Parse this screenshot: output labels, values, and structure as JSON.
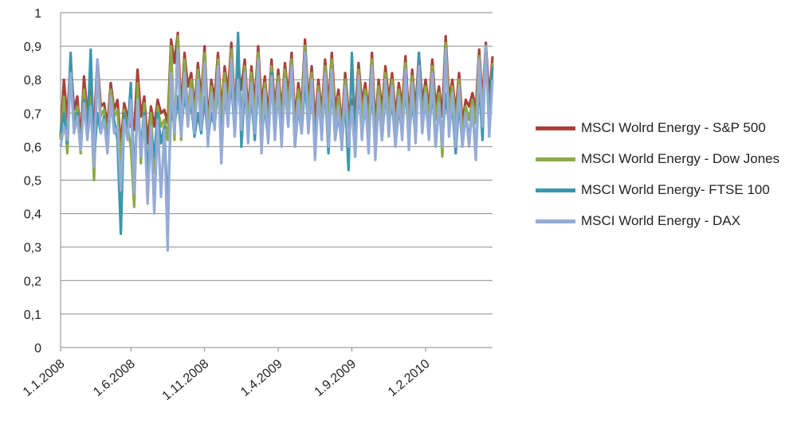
{
  "colors": {
    "sp500": "#a8403c",
    "dowjones": "#8caa45",
    "ftse100": "#3a97ad",
    "dax": "#95abd6",
    "grid": "#8a8a8a"
  },
  "chart_data": {
    "type": "line",
    "title": "",
    "xlabel": "",
    "ylabel": "",
    "ylim": [
      0,
      1
    ],
    "yticks": [
      "0",
      "0,1",
      "0,2",
      "0,3",
      "0,4",
      "0,5",
      "0,6",
      "0,7",
      "0,8",
      "0,9",
      "1"
    ],
    "xticks": [
      "1.1.2008",
      "1.6.2008",
      "1.11.2008",
      "1.4.2009",
      "1.9.2009",
      "1.2.2010"
    ],
    "x_range": [
      "1.1.2008",
      "30.6.2010"
    ],
    "x_note": "weekly observations, 130 points from 1.1.2008 (approx. 7 days apart)",
    "grid": true,
    "legend_position": "right",
    "series": [
      {
        "name": "MSCI Wolrd Energy - S&P 500",
        "color": "#a8403c",
        "values": [
          0.63,
          0.8,
          0.68,
          0.86,
          0.71,
          0.75,
          0.62,
          0.81,
          0.7,
          0.77,
          0.65,
          0.86,
          0.72,
          0.73,
          0.66,
          0.79,
          0.71,
          0.74,
          0.6,
          0.73,
          0.69,
          0.66,
          0.65,
          0.83,
          0.69,
          0.75,
          0.61,
          0.72,
          0.66,
          0.74,
          0.7,
          0.71,
          0.67,
          0.92,
          0.85,
          0.94,
          0.7,
          0.88,
          0.78,
          0.82,
          0.71,
          0.85,
          0.74,
          0.9,
          0.67,
          0.8,
          0.74,
          0.88,
          0.7,
          0.84,
          0.76,
          0.91,
          0.71,
          0.85,
          0.77,
          0.86,
          0.7,
          0.84,
          0.73,
          0.9,
          0.72,
          0.81,
          0.69,
          0.86,
          0.71,
          0.83,
          0.7,
          0.85,
          0.75,
          0.88,
          0.68,
          0.79,
          0.72,
          0.92,
          0.73,
          0.84,
          0.67,
          0.8,
          0.7,
          0.86,
          0.72,
          0.88,
          0.71,
          0.77,
          0.66,
          0.82,
          0.7,
          0.74,
          0.69,
          0.85,
          0.73,
          0.79,
          0.7,
          0.88,
          0.66,
          0.8,
          0.71,
          0.84,
          0.74,
          0.82,
          0.69,
          0.79,
          0.72,
          0.87,
          0.68,
          0.83,
          0.7,
          0.88,
          0.73,
          0.8,
          0.71,
          0.86,
          0.72,
          0.78,
          0.69,
          0.93,
          0.74,
          0.8,
          0.7,
          0.82,
          0.67,
          0.74,
          0.72,
          0.76,
          0.71,
          0.89,
          0.73,
          0.91,
          0.74,
          0.87
        ]
      },
      {
        "name": "MSCI World Energy - Dow Jones",
        "color": "#8caa45",
        "values": [
          0.62,
          0.75,
          0.58,
          0.84,
          0.67,
          0.72,
          0.58,
          0.77,
          0.66,
          0.75,
          0.5,
          0.84,
          0.69,
          0.71,
          0.62,
          0.77,
          0.69,
          0.71,
          0.55,
          0.71,
          0.66,
          0.6,
          0.42,
          0.79,
          0.55,
          0.73,
          0.49,
          0.7,
          0.52,
          0.72,
          0.66,
          0.68,
          0.62,
          0.9,
          0.62,
          0.93,
          0.62,
          0.86,
          0.7,
          0.8,
          0.68,
          0.83,
          0.7,
          0.88,
          0.64,
          0.78,
          0.69,
          0.86,
          0.66,
          0.82,
          0.7,
          0.89,
          0.67,
          0.83,
          0.68,
          0.84,
          0.66,
          0.82,
          0.68,
          0.88,
          0.66,
          0.79,
          0.64,
          0.84,
          0.67,
          0.81,
          0.66,
          0.83,
          0.71,
          0.86,
          0.64,
          0.77,
          0.68,
          0.9,
          0.69,
          0.82,
          0.6,
          0.78,
          0.66,
          0.84,
          0.68,
          0.86,
          0.66,
          0.75,
          0.62,
          0.8,
          0.66,
          0.72,
          0.57,
          0.83,
          0.69,
          0.77,
          0.66,
          0.86,
          0.61,
          0.78,
          0.67,
          0.82,
          0.7,
          0.8,
          0.65,
          0.77,
          0.68,
          0.85,
          0.64,
          0.81,
          0.66,
          0.86,
          0.69,
          0.78,
          0.67,
          0.84,
          0.68,
          0.76,
          0.57,
          0.91,
          0.7,
          0.78,
          0.66,
          0.8,
          0.63,
          0.72,
          0.68,
          0.74,
          0.67,
          0.87,
          0.69,
          0.89,
          0.68,
          0.85
        ]
      },
      {
        "name": "MSCI World Energy- FTSE 100",
        "color": "#3a97ad",
        "values": [
          0.64,
          0.7,
          0.61,
          0.88,
          0.65,
          0.7,
          0.6,
          0.74,
          0.63,
          0.89,
          0.56,
          0.7,
          0.64,
          0.69,
          0.6,
          0.73,
          0.68,
          0.62,
          0.34,
          0.7,
          0.64,
          0.79,
          0.5,
          0.72,
          0.6,
          0.7,
          0.52,
          0.65,
          0.57,
          0.7,
          0.61,
          0.66,
          0.4,
          0.72,
          0.66,
          0.75,
          0.64,
          0.76,
          0.68,
          0.73,
          0.63,
          0.7,
          0.64,
          0.75,
          0.62,
          0.7,
          0.66,
          0.78,
          0.64,
          0.74,
          0.68,
          0.8,
          0.64,
          0.94,
          0.6,
          0.78,
          0.64,
          0.75,
          0.62,
          0.8,
          0.63,
          0.72,
          0.62,
          0.82,
          0.64,
          0.76,
          0.63,
          0.78,
          0.66,
          0.83,
          0.6,
          0.72,
          0.64,
          0.8,
          0.65,
          0.76,
          0.62,
          0.74,
          0.64,
          0.78,
          0.58,
          0.8,
          0.62,
          0.7,
          0.6,
          0.74,
          0.53,
          0.88,
          0.62,
          0.77,
          0.64,
          0.72,
          0.62,
          0.78,
          0.58,
          0.74,
          0.62,
          0.76,
          0.66,
          0.74,
          0.6,
          0.72,
          0.64,
          0.78,
          0.62,
          0.74,
          0.63,
          0.88,
          0.65,
          0.74,
          0.63,
          0.78,
          0.6,
          0.72,
          0.62,
          0.76,
          0.66,
          0.72,
          0.58,
          0.74,
          0.6,
          0.7,
          0.62,
          0.72,
          0.57,
          0.8,
          0.62,
          0.9,
          0.66,
          0.84
        ]
      },
      {
        "name": "MSCI World Energy - DAX",
        "color": "#95abd6",
        "values": [
          0.6,
          0.66,
          0.62,
          0.82,
          0.64,
          0.69,
          0.59,
          0.73,
          0.62,
          0.72,
          0.54,
          0.86,
          0.64,
          0.68,
          0.58,
          0.75,
          0.64,
          0.66,
          0.47,
          0.68,
          0.62,
          0.74,
          0.46,
          0.74,
          0.57,
          0.69,
          0.43,
          0.66,
          0.4,
          0.68,
          0.45,
          0.65,
          0.29,
          0.82,
          0.64,
          0.89,
          0.63,
          0.82,
          0.66,
          0.77,
          0.64,
          0.8,
          0.65,
          0.85,
          0.6,
          0.76,
          0.65,
          0.84,
          0.55,
          0.79,
          0.66,
          0.86,
          0.63,
          0.8,
          0.65,
          0.82,
          0.61,
          0.79,
          0.64,
          0.86,
          0.58,
          0.77,
          0.61,
          0.81,
          0.62,
          0.79,
          0.6,
          0.8,
          0.66,
          0.84,
          0.6,
          0.74,
          0.64,
          0.88,
          0.64,
          0.8,
          0.56,
          0.76,
          0.62,
          0.82,
          0.6,
          0.83,
          0.62,
          0.72,
          0.59,
          0.78,
          0.6,
          0.72,
          0.57,
          0.81,
          0.62,
          0.75,
          0.58,
          0.84,
          0.56,
          0.75,
          0.62,
          0.8,
          0.63,
          0.78,
          0.6,
          0.75,
          0.62,
          0.83,
          0.59,
          0.79,
          0.61,
          0.84,
          0.64,
          0.76,
          0.62,
          0.82,
          0.6,
          0.73,
          0.6,
          0.89,
          0.63,
          0.76,
          0.6,
          0.78,
          0.6,
          0.7,
          0.6,
          0.72,
          0.56,
          0.86,
          0.66,
          0.9,
          0.63,
          0.8
        ]
      }
    ]
  }
}
